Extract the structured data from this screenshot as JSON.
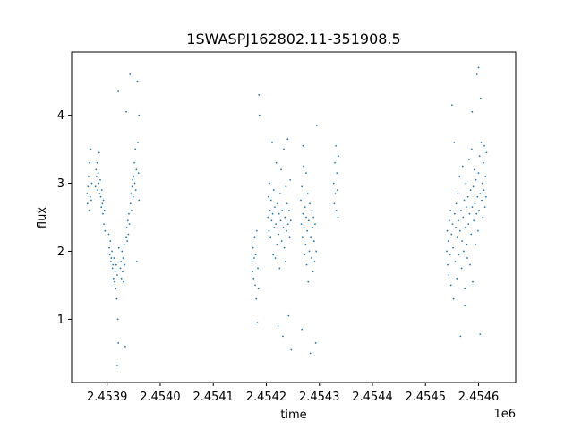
{
  "chart_data": {
    "type": "scatter",
    "title": "1SWASPJ162802.11-351908.5",
    "xlabel": "time",
    "ylabel": "flux",
    "x_offset_label": "1e6",
    "x_scale": 1000000,
    "xlim": [
      2453833,
      2454670
    ],
    "ylim": [
      0.07,
      4.93
    ],
    "xticks": [
      2453900,
      2454000,
      2454100,
      2454200,
      2454300,
      2454400,
      2454500,
      2454600
    ],
    "xtick_labels": [
      "2.4539",
      "2.4540",
      "2.4541",
      "2.4542",
      "2.4543",
      "2.4544",
      "2.4545",
      "2.4546"
    ],
    "yticks": [
      1,
      2,
      3,
      4
    ],
    "ytick_labels": [
      "1",
      "2",
      "3",
      "4"
    ],
    "grid": false,
    "marker_color": "#1f77b4",
    "points_note_free": true,
    "series": [
      {
        "values": [
          [
            2453862,
            2.85
          ],
          [
            2453863,
            2.7
          ],
          [
            2453864,
            2.95
          ],
          [
            2453865,
            3.1
          ],
          [
            2453866,
            2.6
          ],
          [
            2453867,
            3.3
          ],
          [
            2453868,
            2.8
          ],
          [
            2453869,
            3.5
          ],
          [
            2453870,
            2.75
          ],
          [
            2453871,
            3.0
          ],
          [
            2453878,
            2.95
          ],
          [
            2453879,
            3.2
          ],
          [
            2453880,
            3.1
          ],
          [
            2453881,
            3.3
          ],
          [
            2453882,
            2.9
          ],
          [
            2453883,
            3.15
          ],
          [
            2453884,
            3.0
          ],
          [
            2453885,
            3.45
          ],
          [
            2453886,
            2.85
          ],
          [
            2453887,
            3.05
          ],
          [
            2453888,
            2.8
          ],
          [
            2453889,
            2.65
          ],
          [
            2453890,
            2.9
          ],
          [
            2453891,
            2.7
          ],
          [
            2453892,
            2.55
          ],
          [
            2453893,
            2.75
          ],
          [
            2453894,
            2.4
          ],
          [
            2453895,
            2.6
          ],
          [
            2453896,
            2.3
          ],
          [
            2453903,
            2.25
          ],
          [
            2453904,
            2.05
          ],
          [
            2453905,
            1.95
          ],
          [
            2453906,
            2.15
          ],
          [
            2453907,
            1.85
          ],
          [
            2453908,
            1.9
          ],
          [
            2453909,
            2.0
          ],
          [
            2453910,
            1.75
          ],
          [
            2453911,
            1.8
          ],
          [
            2453912,
            1.6
          ],
          [
            2453913,
            1.9
          ],
          [
            2453914,
            1.55
          ],
          [
            2453915,
            1.7
          ],
          [
            2453916,
            1.45
          ],
          [
            2453917,
            1.8
          ],
          [
            2453918,
            1.3
          ],
          [
            2453919,
            1.65
          ],
          [
            2453920,
            1.0
          ],
          [
            2453921,
            0.65
          ],
          [
            2453922,
            2.05
          ],
          [
            2453925,
            1.75
          ],
          [
            2453926,
            1.85
          ],
          [
            2453927,
            1.6
          ],
          [
            2453928,
            2.0
          ],
          [
            2453929,
            1.7
          ],
          [
            2453930,
            1.9
          ],
          [
            2453931,
            1.55
          ],
          [
            2453932,
            2.1
          ],
          [
            2453933,
            1.8
          ],
          [
            2453934,
            0.6
          ],
          [
            2453936,
            2.2
          ],
          [
            2453937,
            2.35
          ],
          [
            2453938,
            2.15
          ],
          [
            2453939,
            2.45
          ],
          [
            2453940,
            2.25
          ],
          [
            2453941,
            2.55
          ],
          [
            2453942,
            2.4
          ],
          [
            2453943,
            4.6
          ],
          [
            2453944,
            2.7
          ],
          [
            2453945,
            2.85
          ],
          [
            2453946,
            2.6
          ],
          [
            2453947,
            2.95
          ],
          [
            2453948,
            3.05
          ],
          [
            2453949,
            2.8
          ],
          [
            2453950,
            3.1
          ],
          [
            2453951,
            3.3
          ],
          [
            2453952,
            3.0
          ],
          [
            2453953,
            3.5
          ],
          [
            2453954,
            2.9
          ],
          [
            2453955,
            3.2
          ],
          [
            2453956,
            1.85
          ],
          [
            2453957,
            4.5
          ],
          [
            2453958,
            3.6
          ],
          [
            2453959,
            3.15
          ],
          [
            2453960,
            2.75
          ],
          [
            2453919,
            0.32
          ],
          [
            2453921,
            4.35
          ],
          [
            2453936,
            4.05
          ],
          [
            2453960,
            4.0
          ],
          [
            2454173,
            1.85
          ],
          [
            2454174,
            1.7
          ],
          [
            2454175,
            2.05
          ],
          [
            2454176,
            1.6
          ],
          [
            2454177,
            1.9
          ],
          [
            2454178,
            2.2
          ],
          [
            2454179,
            1.5
          ],
          [
            2454180,
            1.95
          ],
          [
            2454181,
            1.3
          ],
          [
            2454182,
            2.3
          ],
          [
            2454183,
            0.95
          ],
          [
            2454184,
            1.75
          ],
          [
            2454185,
            1.45
          ],
          [
            2454186,
            4.3
          ],
          [
            2454187,
            4.0
          ],
          [
            2454203,
            2.5
          ],
          [
            2454204,
            2.8
          ],
          [
            2454205,
            2.3
          ],
          [
            2454206,
            3.0
          ],
          [
            2454207,
            2.6
          ],
          [
            2454208,
            2.2
          ],
          [
            2454209,
            2.75
          ],
          [
            2454210,
            2.45
          ],
          [
            2454211,
            3.6
          ],
          [
            2454212,
            2.55
          ],
          [
            2454213,
            1.95
          ],
          [
            2454214,
            2.9
          ],
          [
            2454215,
            2.35
          ],
          [
            2454216,
            2.65
          ],
          [
            2454217,
            1.9
          ],
          [
            2454218,
            2.4
          ],
          [
            2454219,
            3.3
          ],
          [
            2454220,
            2.1
          ],
          [
            2454221,
            2.7
          ],
          [
            2454222,
            0.9
          ],
          [
            2454223,
            2.25
          ],
          [
            2454224,
            2.55
          ],
          [
            2454225,
            1.75
          ],
          [
            2454226,
            2.85
          ],
          [
            2454227,
            2.45
          ],
          [
            2454228,
            3.2
          ],
          [
            2454229,
            2.15
          ],
          [
            2454230,
            2.6
          ],
          [
            2454231,
            0.75
          ],
          [
            2454232,
            2.35
          ],
          [
            2454233,
            3.5
          ],
          [
            2454234,
            2.05
          ],
          [
            2454235,
            2.5
          ],
          [
            2454236,
            1.85
          ],
          [
            2454237,
            2.95
          ],
          [
            2454238,
            2.3
          ],
          [
            2454239,
            2.7
          ],
          [
            2454240,
            3.65
          ],
          [
            2454241,
            2.4
          ],
          [
            2454242,
            1.05
          ],
          [
            2454243,
            2.6
          ],
          [
            2454244,
            2.2
          ],
          [
            2454245,
            3.05
          ],
          [
            2454246,
            2.45
          ],
          [
            2454247,
            0.55
          ],
          [
            2454265,
            2.75
          ],
          [
            2454266,
            2.4
          ],
          [
            2454267,
            2.95
          ],
          [
            2454268,
            2.2
          ],
          [
            2454269,
            2.55
          ],
          [
            2454270,
            3.25
          ],
          [
            2454271,
            2.35
          ],
          [
            2454272,
            1.95
          ],
          [
            2454273,
            2.65
          ],
          [
            2454274,
            2.1
          ],
          [
            2454275,
            2.5
          ],
          [
            2454276,
            1.8
          ],
          [
            2454277,
            2.3
          ],
          [
            2454278,
            2.85
          ],
          [
            2454279,
            1.55
          ],
          [
            2454280,
            2.45
          ],
          [
            2454281,
            2.0
          ],
          [
            2454282,
            2.7
          ],
          [
            2454283,
            0.5
          ],
          [
            2454284,
            2.2
          ],
          [
            2454285,
            1.9
          ],
          [
            2454286,
            2.6
          ],
          [
            2454287,
            2.35
          ],
          [
            2454288,
            1.7
          ],
          [
            2454289,
            2.5
          ],
          [
            2454290,
            2.15
          ],
          [
            2454291,
            1.85
          ],
          [
            2454292,
            2.4
          ],
          [
            2454293,
            0.65
          ],
          [
            2454294,
            2.0
          ],
          [
            2454295,
            3.85
          ],
          [
            2454267,
            0.85
          ],
          [
            2454269,
            3.55
          ],
          [
            2454275,
            3.15
          ],
          [
            2454327,
            3.0
          ],
          [
            2454328,
            2.7
          ],
          [
            2454329,
            3.3
          ],
          [
            2454330,
            2.85
          ],
          [
            2454331,
            3.55
          ],
          [
            2454332,
            2.6
          ],
          [
            2454333,
            3.15
          ],
          [
            2454334,
            2.9
          ],
          [
            2454335,
            2.5
          ],
          [
            2454336,
            3.4
          ],
          [
            2454540,
            2.0
          ],
          [
            2454541,
            2.3
          ],
          [
            2454542,
            1.8
          ],
          [
            2454543,
            2.15
          ],
          [
            2454544,
            1.65
          ],
          [
            2454545,
            2.45
          ],
          [
            2454546,
            1.95
          ],
          [
            2454547,
            2.6
          ],
          [
            2454548,
            1.5
          ],
          [
            2454549,
            2.25
          ],
          [
            2454550,
            4.15
          ],
          [
            2454551,
            2.4
          ],
          [
            2454552,
            2.05
          ],
          [
            2454553,
            1.3
          ],
          [
            2454554,
            3.6
          ],
          [
            2454555,
            2.55
          ],
          [
            2454556,
            1.85
          ],
          [
            2454557,
            2.35
          ],
          [
            2454558,
            2.7
          ],
          [
            2454559,
            1.6
          ],
          [
            2454560,
            2.2
          ],
          [
            2454561,
            2.85
          ],
          [
            2454562,
            2.45
          ],
          [
            2454563,
            1.95
          ],
          [
            2454564,
            3.1
          ],
          [
            2454565,
            2.3
          ],
          [
            2454566,
            0.75
          ],
          [
            2454567,
            2.6
          ],
          [
            2454568,
            1.75
          ],
          [
            2454569,
            2.15
          ],
          [
            2454570,
            3.25
          ],
          [
            2454571,
            2.5
          ],
          [
            2454572,
            2.0
          ],
          [
            2454573,
            2.75
          ],
          [
            2454574,
            1.45
          ],
          [
            2454575,
            2.35
          ],
          [
            2454576,
            3.0
          ],
          [
            2454577,
            2.65
          ],
          [
            2454578,
            2.1
          ],
          [
            2454579,
            1.9
          ],
          [
            2454580,
            2.8
          ],
          [
            2454581,
            2.4
          ],
          [
            2454582,
            3.35
          ],
          [
            2454583,
            2.55
          ],
          [
            2454584,
            1.8
          ],
          [
            2454585,
            2.9
          ],
          [
            2454586,
            2.25
          ],
          [
            2454587,
            3.5
          ],
          [
            2454588,
            2.65
          ],
          [
            2454589,
            1.55
          ],
          [
            2454590,
            2.95
          ],
          [
            2454591,
            2.45
          ],
          [
            2454592,
            3.2
          ],
          [
            2454593,
            2.7
          ],
          [
            2454594,
            2.1
          ],
          [
            2454595,
            3.05
          ],
          [
            2454596,
            2.55
          ],
          [
            2454597,
            4.6
          ],
          [
            2454598,
            2.8
          ],
          [
            2454599,
            2.3
          ],
          [
            2454600,
            3.15
          ],
          [
            2454601,
            2.6
          ],
          [
            2454602,
            3.4
          ],
          [
            2454603,
            2.85
          ],
          [
            2454604,
            4.25
          ],
          [
            2454605,
            3.6
          ],
          [
            2454606,
            2.75
          ],
          [
            2454607,
            3.0
          ],
          [
            2454608,
            2.5
          ],
          [
            2454609,
            3.3
          ],
          [
            2454610,
            2.9
          ],
          [
            2454611,
            3.55
          ],
          [
            2454612,
            2.65
          ],
          [
            2454613,
            3.1
          ],
          [
            2454614,
            2.8
          ],
          [
            2454615,
            3.45
          ],
          [
            2454603,
            0.78
          ],
          [
            2454600,
            4.7
          ],
          [
            2454574,
            1.2
          ],
          [
            2454588,
            4.05
          ]
        ]
      }
    ]
  }
}
